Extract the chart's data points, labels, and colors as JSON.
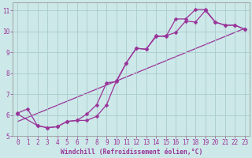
{
  "bg_color": "#cce8e8",
  "grid_color": "#aacccc",
  "line_color": "#993399",
  "markersize": 2.5,
  "linewidth": 0.9,
  "xlim": [
    -0.5,
    23.5
  ],
  "ylim": [
    5,
    11.4
  ],
  "xlabel": "Windchill (Refroidissement éolien,°C)",
  "xlabel_fontsize": 5.8,
  "tick_fontsize": 5.5,
  "yticks": [
    5,
    6,
    7,
    8,
    9,
    10,
    11
  ],
  "xticks": [
    0,
    1,
    2,
    3,
    4,
    5,
    6,
    7,
    8,
    9,
    10,
    11,
    12,
    13,
    14,
    15,
    16,
    17,
    18,
    19,
    20,
    21,
    22,
    23
  ],
  "series1": [
    [
      0,
      6.1
    ],
    [
      1,
      6.3
    ],
    [
      2,
      5.5
    ],
    [
      3,
      5.4
    ],
    [
      4,
      5.45
    ],
    [
      5,
      5.7
    ],
    [
      6,
      5.75
    ],
    [
      7,
      6.05
    ],
    [
      8,
      6.5
    ],
    [
      9,
      7.55
    ],
    [
      10,
      7.6
    ],
    [
      11,
      8.5
    ],
    [
      12,
      9.2
    ],
    [
      13,
      9.15
    ],
    [
      14,
      9.8
    ],
    [
      15,
      9.75
    ],
    [
      16,
      10.6
    ],
    [
      17,
      10.6
    ],
    [
      18,
      11.05
    ],
    [
      19,
      11.05
    ],
    [
      20,
      10.45
    ],
    [
      21,
      10.3
    ],
    [
      22,
      10.3
    ],
    [
      23,
      10.1
    ]
  ],
  "series2": [
    [
      0,
      6.05
    ],
    [
      2,
      5.5
    ],
    [
      3,
      5.4
    ],
    [
      4,
      5.45
    ],
    [
      5,
      5.7
    ],
    [
      6,
      5.75
    ],
    [
      7,
      5.75
    ],
    [
      8,
      5.95
    ],
    [
      9,
      6.5
    ],
    [
      10,
      7.65
    ],
    [
      11,
      8.5
    ],
    [
      12,
      9.2
    ],
    [
      13,
      9.15
    ],
    [
      14,
      9.75
    ],
    [
      15,
      9.8
    ],
    [
      16,
      9.95
    ],
    [
      17,
      10.5
    ],
    [
      18,
      10.45
    ],
    [
      19,
      11.0
    ],
    [
      20,
      10.45
    ],
    [
      21,
      10.3
    ],
    [
      22,
      10.3
    ],
    [
      23,
      10.1
    ]
  ],
  "trend_line": [
    [
      0,
      5.7
    ],
    [
      23,
      10.15
    ]
  ]
}
